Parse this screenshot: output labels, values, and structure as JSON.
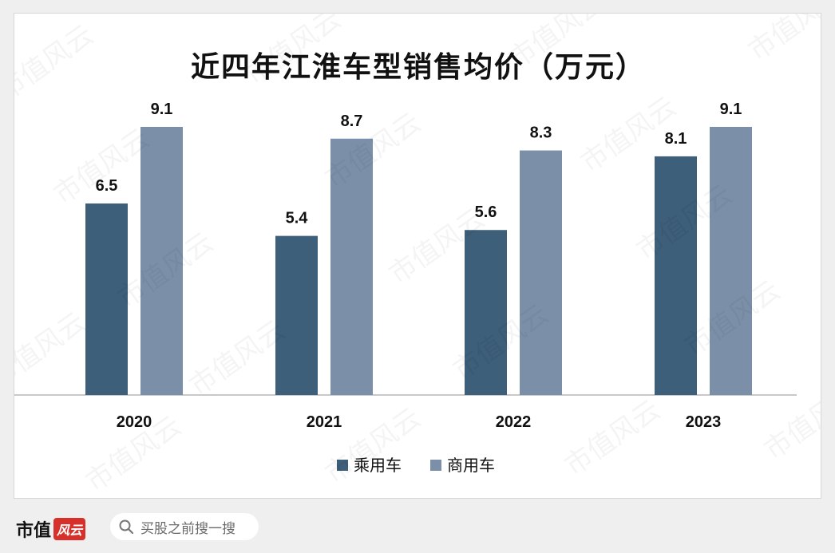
{
  "chart_data": {
    "type": "bar",
    "title": "近四年江淮车型销售均价（万元）",
    "categories": [
      "2020",
      "2021",
      "2022",
      "2023"
    ],
    "series": [
      {
        "name": "乘用车",
        "values": [
          6.5,
          5.4,
          5.6,
          8.1
        ],
        "color": "#3d5f7a"
      },
      {
        "name": "商用车",
        "values": [
          9.1,
          8.7,
          8.3,
          9.1
        ],
        "color": "#7b90a8"
      }
    ],
    "ylim": [
      0,
      10
    ],
    "grid": false,
    "legend_position": "bottom"
  },
  "watermark_text": "市值风云",
  "footer": {
    "brand": "市值",
    "brand_seal": "风云",
    "search_placeholder": "买股之前搜一搜",
    "search_icon": "magnifier-icon"
  }
}
